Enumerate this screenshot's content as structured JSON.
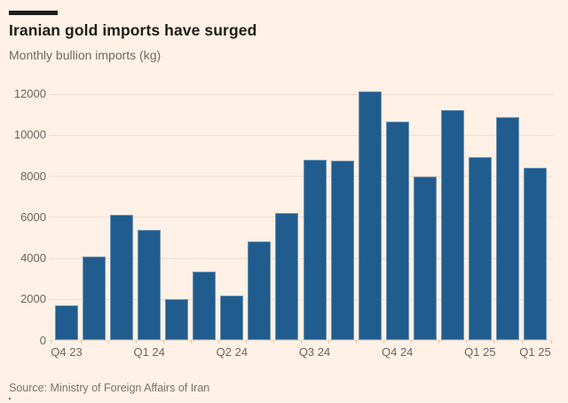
{
  "header": {
    "title": "Iranian gold imports have surged",
    "subtitle": "Monthly bullion imports (kg)"
  },
  "footer": {
    "source": "Source: Ministry of Foreign Affairs of Iran"
  },
  "colors": {
    "background": "#FFF1E5",
    "bar": "#215C8E",
    "gridline": "#ecddcd",
    "axis_text": "#6b645e",
    "title_text": "#201c18",
    "subtitle_text": "#6f6861",
    "source_text": "#7b736a"
  },
  "chart_data": {
    "type": "bar",
    "title": "Iranian gold imports have surged",
    "subtitle": "Monthly bullion imports (kg)",
    "ylabel": "Monthly bullion imports (kg)",
    "ylim": [
      0,
      12400
    ],
    "yticks": [
      0,
      2000,
      4000,
      6000,
      8000,
      10000,
      12000
    ],
    "grid": "horizontal",
    "legend": "none",
    "values": [
      1700,
      4050,
      6100,
      5350,
      2000,
      3350,
      2150,
      4800,
      6200,
      8800,
      8750,
      12100,
      10650,
      7950,
      11200,
      8900,
      10850,
      8400
    ],
    "x_ticks": [
      {
        "bar_index": 0,
        "label": "Q4 23"
      },
      {
        "bar_index": 3,
        "label": "Q1 24"
      },
      {
        "bar_index": 6,
        "label": "Q2 24"
      },
      {
        "bar_index": 9,
        "label": "Q3 24"
      },
      {
        "bar_index": 12,
        "label": "Q4 24"
      },
      {
        "bar_index": 15,
        "label": "Q1 25"
      },
      {
        "bar_index": 17,
        "label": "Q1 25"
      }
    ]
  }
}
